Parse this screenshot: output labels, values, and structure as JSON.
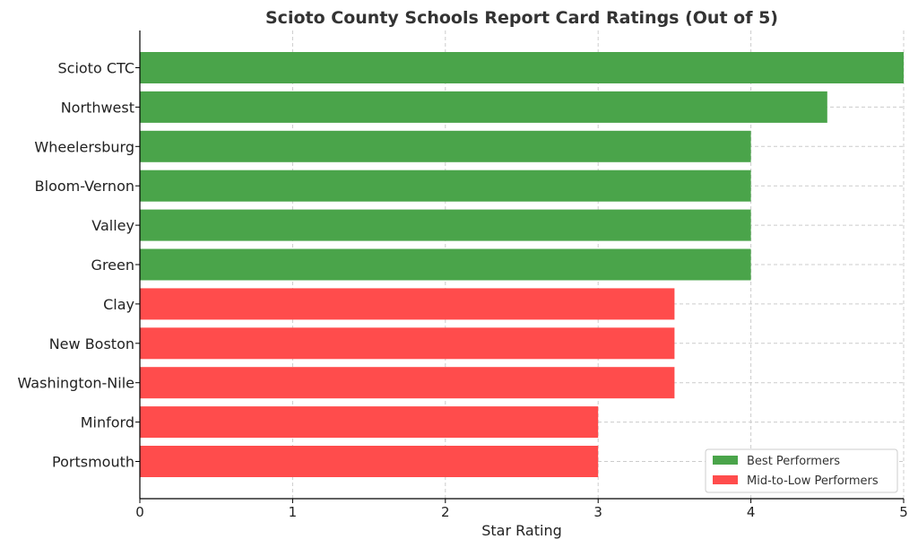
{
  "chart_data": {
    "type": "bar",
    "orientation": "horizontal",
    "title": "Scioto County Schools Report Card Ratings (Out of 5)",
    "xlabel": "Star Rating",
    "ylabel": "",
    "xlim": [
      0,
      5
    ],
    "xticks": [
      "0",
      "1",
      "2",
      "3",
      "4",
      "5"
    ],
    "grid": true,
    "legend_position": "bottom-right",
    "categories": [
      "Scioto CTC",
      "Northwest",
      "Wheelersburg",
      "Bloom-Vernon",
      "Valley",
      "Green",
      "Clay",
      "New Boston",
      "Washington-Nile",
      "Minford",
      "Portsmouth"
    ],
    "values": [
      5,
      4.5,
      4,
      4,
      4,
      4,
      3.5,
      3.5,
      3.5,
      3,
      3
    ],
    "groups": [
      "best",
      "best",
      "best",
      "best",
      "best",
      "best",
      "mid",
      "mid",
      "mid",
      "mid",
      "mid"
    ],
    "legend": [
      {
        "key": "best",
        "label": "Best Performers",
        "color": "#4aa44a"
      },
      {
        "key": "mid",
        "label": "Mid-to-Low Performers",
        "color": "#ff4c4c"
      }
    ]
  }
}
